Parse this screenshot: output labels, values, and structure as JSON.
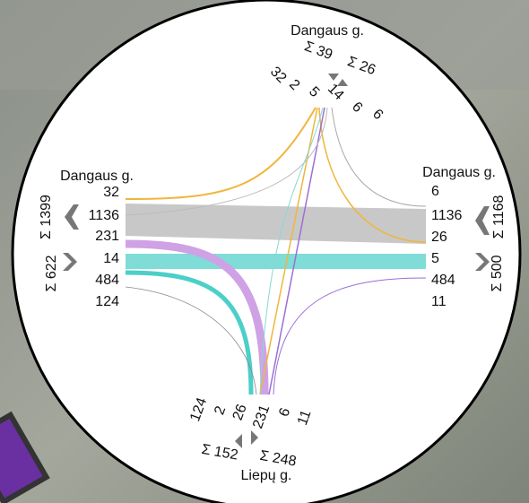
{
  "north": {
    "street": "Dangaus g.",
    "sum_in": "Σ 39",
    "sum_out": "Σ 26",
    "flows": [
      32,
      2,
      5,
      14,
      6,
      6
    ]
  },
  "west": {
    "street": "Dangaus g.",
    "sum_upper": "Σ 1399",
    "sum_lower": "Σ 622",
    "flows": [
      32,
      1136,
      231,
      14,
      484,
      124
    ]
  },
  "east": {
    "street": "Dangaus g.",
    "sum_upper": "Σ 1168",
    "sum_lower": "Σ 500",
    "flows": [
      6,
      1136,
      26,
      5,
      484,
      11
    ]
  },
  "south": {
    "street": "Liepų g.",
    "sum_in": "Σ 152",
    "sum_out": "Σ 248",
    "flows": [
      124,
      2,
      26,
      231,
      6,
      11
    ]
  }
}
